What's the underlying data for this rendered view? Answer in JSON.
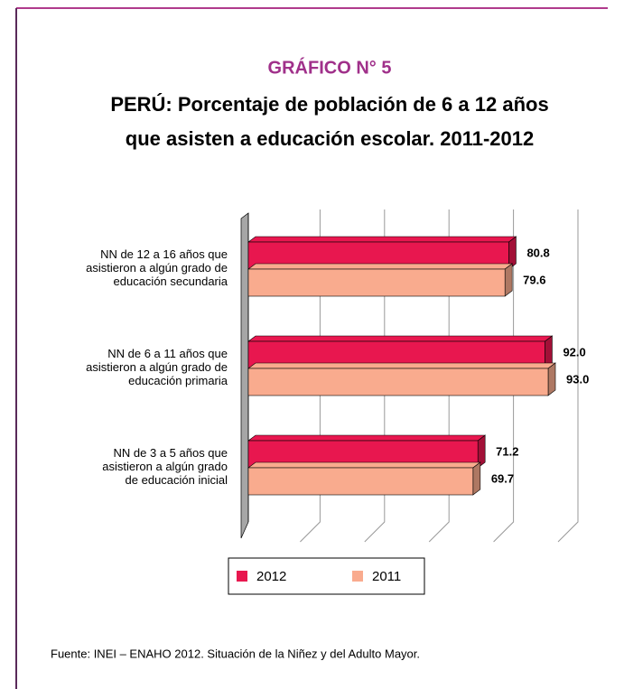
{
  "chart_data": {
    "type": "bar",
    "orientation": "horizontal",
    "heading": "GRÁFICO N° 5",
    "title": [
      "PERÚ: Porcentaje de población de 6 a 12 años",
      "que asisten a educación escolar. 2011-2012"
    ],
    "categories": [
      "NN de 12 a 16 años que\nasistieron a algún grado de\neducación secundaria",
      "NN de 6 a 11 años que\nasistieron a algún grado de\neducación primaria",
      "NN de 3 a 5 años que\nasistieron a algún grado\nde educación inicial"
    ],
    "series": [
      {
        "name": "2012",
        "color": "#e8174f",
        "values": [
          80.8,
          92.0,
          71.2
        ],
        "value_labels": [
          "80.8",
          "92.0",
          "71.2"
        ]
      },
      {
        "name": "2011",
        "color": "#f9ab8e",
        "values": [
          79.6,
          93.0,
          69.7
        ],
        "value_labels": [
          "79.6",
          "93.0",
          "69.7"
        ]
      }
    ],
    "xlim": [
      0,
      100
    ],
    "xticks": [
      0,
      20,
      40,
      60,
      80,
      100
    ],
    "grid": true,
    "legend": "bottom",
    "source": "Fuente: INEI – ENAHO 2012. Situación de la Niñez y del Adulto Mayor."
  }
}
